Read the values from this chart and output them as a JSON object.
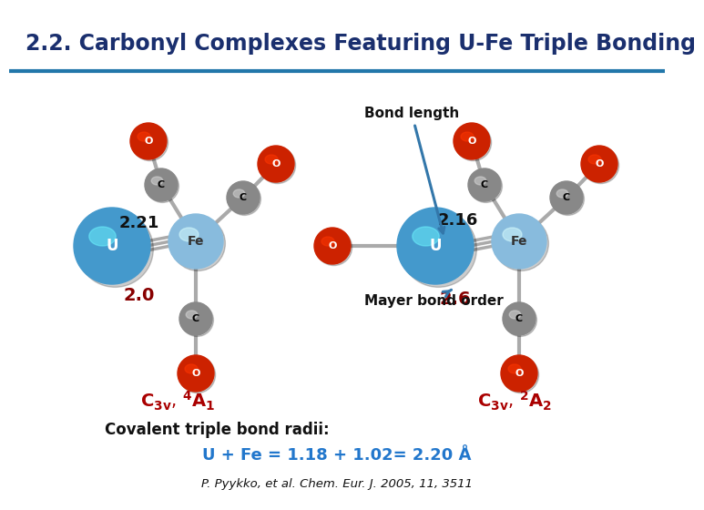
{
  "title": "2.2. Carbonyl Complexes Featuring U-Fe Triple Bonding",
  "title_color": "#1a2f6e",
  "title_fontsize": 17,
  "background_color": "#ffffff",
  "separator_color": "#2277aa",
  "bond_length_label": "Bond length",
  "mayer_label": "Mayer bond order",
  "val_221": "2.21",
  "val_216": "2.16",
  "val_20": "2.0",
  "val_26": "2.6",
  "num_color": "#880000",
  "black_color": "#111111",
  "label2": "C$_{3v}$, $^4$A$_1$",
  "label3": "C$_{3v}$, $^2$A$_2$",
  "red_label_color": "#aa0000",
  "covalent_title": "Covalent triple bond radii:",
  "covalent_eq": "U + Fe = 1.18 + 1.02= 2.20 Å",
  "covalent_color": "#2277cc",
  "ref": "P. Pyykko, et al. Chem. Eur. J. 2005, 11, 3511",
  "u_color": "#4499cc",
  "fe_color": "#88bbdd",
  "o_color": "#cc2200",
  "c_color": "#888888",
  "bond_color": "#aaaaaa"
}
